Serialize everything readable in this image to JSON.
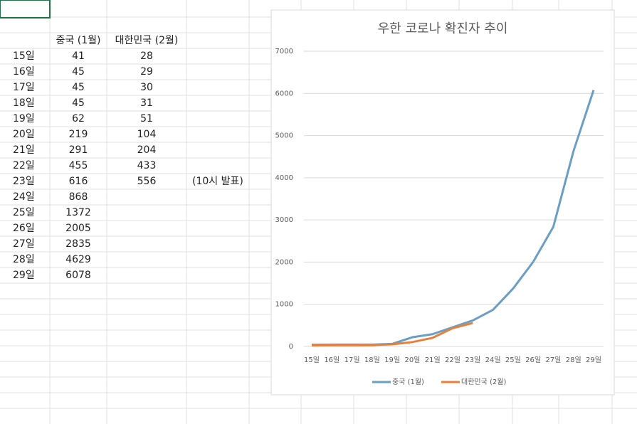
{
  "table": {
    "headers": [
      "중국 (1월)",
      "대한민국 (2월)"
    ],
    "rows": [
      {
        "day": "15일",
        "china": 41,
        "korea": 28
      },
      {
        "day": "16일",
        "china": 45,
        "korea": 29
      },
      {
        "day": "17일",
        "china": 45,
        "korea": 30
      },
      {
        "day": "18일",
        "china": 45,
        "korea": 31
      },
      {
        "day": "19일",
        "china": 62,
        "korea": 51
      },
      {
        "day": "20일",
        "china": 219,
        "korea": 104
      },
      {
        "day": "21일",
        "china": 291,
        "korea": 204
      },
      {
        "day": "22일",
        "china": 455,
        "korea": 433
      },
      {
        "day": "23일",
        "china": 616,
        "korea": 556,
        "note": "(10시 발표)"
      },
      {
        "day": "24일",
        "china": 868
      },
      {
        "day": "25일",
        "china": 1372
      },
      {
        "day": "26일",
        "china": 2005
      },
      {
        "day": "27일",
        "china": 2835
      },
      {
        "day": "28일",
        "china": 4629
      },
      {
        "day": "29일",
        "china": 6078
      }
    ]
  },
  "chart_data": {
    "type": "line",
    "title": "우한 코로나 확진자 추이",
    "categories": [
      "15일",
      "16일",
      "17일",
      "18일",
      "19일",
      "20일",
      "21일",
      "22일",
      "23일",
      "24일",
      "25일",
      "26일",
      "27일",
      "28일",
      "29일"
    ],
    "series": [
      {
        "name": "중국 (1월)",
        "color": "#6a9ec4",
        "values": [
          41,
          45,
          45,
          45,
          62,
          219,
          291,
          455,
          616,
          868,
          1372,
          2005,
          2835,
          4629,
          6078
        ]
      },
      {
        "name": "대한민국 (2월)",
        "color": "#e8803a",
        "values": [
          28,
          29,
          30,
          31,
          51,
          104,
          204,
          433,
          556,
          null,
          null,
          null,
          null,
          null,
          null
        ]
      }
    ],
    "ylim": [
      0,
      7000
    ],
    "yticks": [
      0,
      1000,
      2000,
      3000,
      4000,
      5000,
      6000,
      7000
    ],
    "grid": true,
    "legend": "bottom"
  }
}
